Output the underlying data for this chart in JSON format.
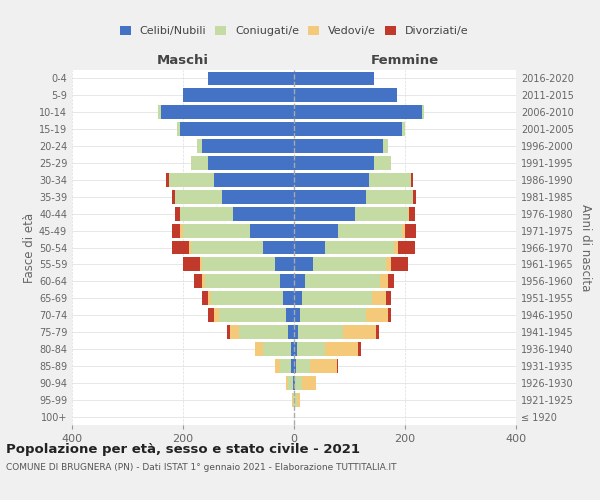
{
  "age_groups": [
    "100+",
    "95-99",
    "90-94",
    "85-89",
    "80-84",
    "75-79",
    "70-74",
    "65-69",
    "60-64",
    "55-59",
    "50-54",
    "45-49",
    "40-44",
    "35-39",
    "30-34",
    "25-29",
    "20-24",
    "15-19",
    "10-14",
    "5-9",
    "0-4"
  ],
  "birth_years": [
    "≤ 1920",
    "1921-1925",
    "1926-1930",
    "1931-1935",
    "1936-1940",
    "1941-1945",
    "1946-1950",
    "1951-1955",
    "1956-1960",
    "1961-1965",
    "1966-1970",
    "1971-1975",
    "1976-1980",
    "1981-1985",
    "1986-1990",
    "1991-1995",
    "1996-2000",
    "2001-2005",
    "2006-2010",
    "2011-2015",
    "2016-2020"
  ],
  "maschi": {
    "celibi": [
      0,
      0,
      2,
      5,
      5,
      10,
      15,
      20,
      25,
      35,
      55,
      80,
      110,
      130,
      145,
      155,
      165,
      205,
      240,
      200,
      155
    ],
    "coniugati": [
      0,
      2,
      8,
      20,
      50,
      90,
      120,
      130,
      135,
      130,
      130,
      120,
      95,
      85,
      80,
      30,
      10,
      5,
      5,
      0,
      0
    ],
    "vedovi": [
      0,
      2,
      5,
      10,
      15,
      15,
      10,
      5,
      5,
      5,
      5,
      5,
      0,
      0,
      0,
      0,
      0,
      0,
      0,
      0,
      0
    ],
    "divorziati": [
      0,
      0,
      0,
      0,
      0,
      5,
      10,
      10,
      15,
      30,
      30,
      15,
      10,
      5,
      5,
      0,
      0,
      0,
      0,
      0,
      0
    ]
  },
  "femmine": {
    "nubili": [
      0,
      0,
      2,
      3,
      5,
      8,
      10,
      15,
      20,
      35,
      55,
      80,
      110,
      130,
      135,
      145,
      160,
      195,
      230,
      185,
      145
    ],
    "coniugate": [
      0,
      5,
      12,
      25,
      50,
      80,
      120,
      125,
      135,
      130,
      125,
      115,
      95,
      85,
      75,
      30,
      10,
      5,
      5,
      0,
      0
    ],
    "vedove": [
      0,
      5,
      25,
      50,
      60,
      60,
      40,
      25,
      15,
      10,
      8,
      5,
      3,
      0,
      0,
      0,
      0,
      0,
      0,
      0,
      0
    ],
    "divorziate": [
      0,
      0,
      0,
      2,
      5,
      5,
      5,
      10,
      10,
      30,
      30,
      20,
      10,
      5,
      5,
      0,
      0,
      0,
      0,
      0,
      0
    ]
  },
  "colors": {
    "celibi": "#4472c4",
    "coniugati": "#c5dba4",
    "vedovi": "#f5c97a",
    "divorziati": "#c0392b"
  },
  "xlim": 400,
  "title": "Popolazione per età, sesso e stato civile - 2021",
  "subtitle": "COMUNE DI BRUGNERA (PN) - Dati ISTAT 1° gennaio 2021 - Elaborazione TUTTITALIA.IT",
  "ylabel_left": "Fasce di età",
  "ylabel_right": "Anni di nascita",
  "xlabel_left": "Maschi",
  "xlabel_right": "Femmine",
  "bg_color": "#f0f0f0",
  "plot_bg_color": "#ffffff",
  "grid_color": "#cccccc"
}
